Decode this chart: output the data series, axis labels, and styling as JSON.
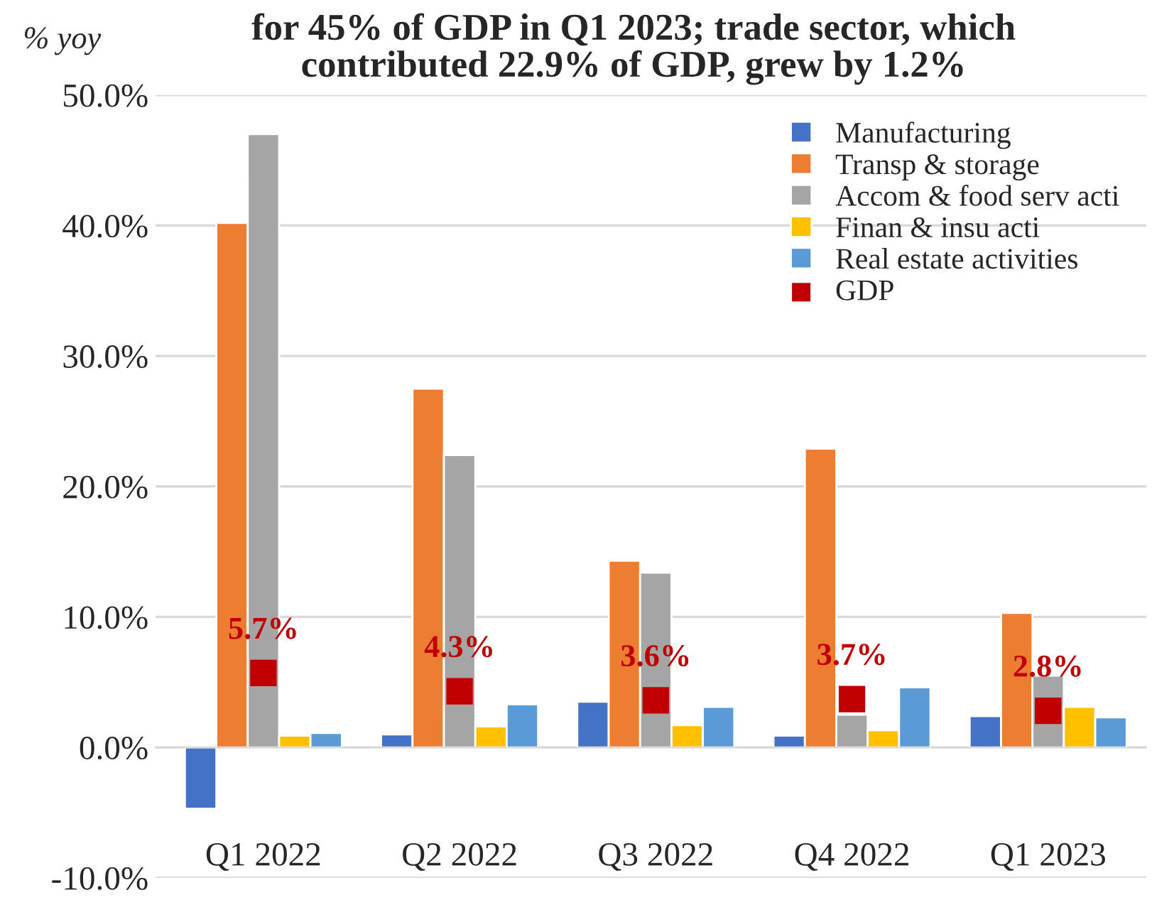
{
  "chart_data": {
    "type": "bar",
    "title": "for 45% of GDP in Q1 2023; trade sector, which\ncontributed 22.9% of GDP, grew by 1.2%",
    "ylabel": "% yoy",
    "categories": [
      "Q1 2022",
      "Q2 2022",
      "Q3 2022",
      "Q4 2022",
      "Q1 2023"
    ],
    "series": [
      {
        "name": "Manufacturing",
        "color": "#4472c4",
        "values": [
          -4.7,
          1.0,
          3.5,
          0.9,
          2.4
        ]
      },
      {
        "name": "Transp & storage",
        "color": "#ed7d31",
        "values": [
          40.2,
          27.5,
          14.3,
          22.9,
          10.3
        ]
      },
      {
        "name": "Accom & food serv acti",
        "color": "#a5a5a5",
        "values": [
          47.0,
          22.4,
          13.4,
          2.5,
          5.5
        ]
      },
      {
        "name": "Finan & insu acti",
        "color": "#ffc000",
        "values": [
          0.9,
          1.6,
          1.7,
          1.3,
          3.1
        ]
      },
      {
        "name": "Real estate activities",
        "color": "#5b9bd5",
        "values": [
          1.1,
          3.3,
          3.1,
          4.6,
          2.3
        ]
      },
      {
        "name": "GDP",
        "color": "#c00000",
        "type": "scatter",
        "marker": "square",
        "values": [
          5.7,
          4.3,
          3.6,
          3.7,
          2.8
        ],
        "value_labels": [
          "5.7%",
          "4.3%",
          "3.6%",
          "3.7%",
          "2.8%"
        ]
      }
    ],
    "ylim": [
      -10,
      50
    ],
    "yticks": [
      {
        "value": -10,
        "label": "-10.0%"
      },
      {
        "value": 0,
        "label": "0.0%"
      },
      {
        "value": 10,
        "label": "10.0%"
      },
      {
        "value": 20,
        "label": "20.0%"
      },
      {
        "value": 30,
        "label": "30.0%"
      },
      {
        "value": 40,
        "label": "40.0%"
      },
      {
        "value": 50,
        "label": "50.0%"
      }
    ],
    "grid": "y",
    "legend": "top right"
  }
}
